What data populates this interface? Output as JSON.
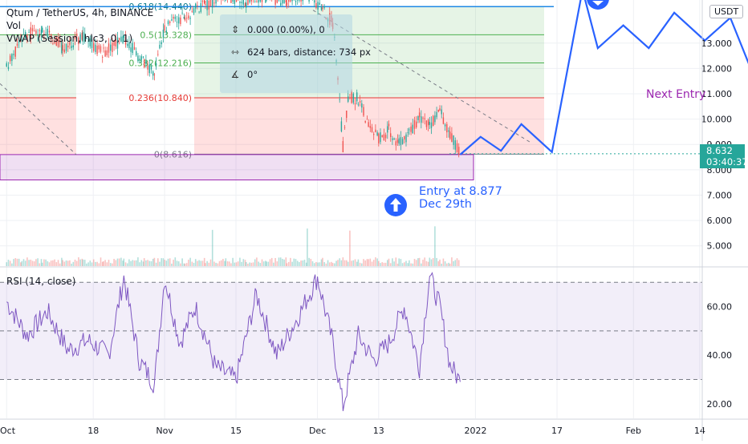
{
  "legend": {
    "symbol": "Qtum / TetherUS, 4h, BINANCE",
    "volume": "Vol",
    "vwap": "VWAP (Session, hlc3, 0, 1)",
    "rsi": "RSI (14, close)"
  },
  "currency_button": "USDT",
  "measure_box": {
    "change": "0.000 (0.00%), 0",
    "bars": "624 bars, distance: 734 px",
    "angle": "0°"
  },
  "last_price": {
    "price": "8.632",
    "countdown": "03:40:37"
  },
  "annotations": {
    "entry": "Entry at 8.877\nDec 29th",
    "next_entry": "Next Entry"
  },
  "fib_labels": [
    "0.618(14.440)",
    "0.5(13.328)",
    "0.382(12.216)",
    "0.236(10.840)",
    "0(8.616)"
  ],
  "colors": {
    "bullish": "#26a69a",
    "bearish": "#ef5350",
    "projection": "#2962ff",
    "rsi_line": "#7e57c2",
    "zone": "#9c27b0"
  },
  "chart_data": [
    {
      "type": "line",
      "panel": "price",
      "title": "Qtum / TetherUS, 4h, BINANCE",
      "ylim": [
        4.2,
        14.7
      ],
      "y_ticks": [
        5,
        6,
        7,
        8,
        9,
        10,
        11,
        12,
        13
      ],
      "y_tick_labels": [
        "5.000",
        "6.000",
        "7.000",
        "8.000",
        "9.000",
        "10.000",
        "11.000",
        "12.000",
        "13.000"
      ],
      "x_tick_labels": [
        "Oct",
        "18",
        "Nov",
        "15",
        "Dec",
        "13",
        "2022",
        "17",
        "Feb",
        "14"
      ],
      "fib_levels": [
        {
          "ratio": 0.618,
          "price": 14.44
        },
        {
          "ratio": 0.5,
          "price": 13.328
        },
        {
          "ratio": 0.382,
          "price": 12.216
        },
        {
          "ratio": 0.236,
          "price": 10.84
        },
        {
          "ratio": 0,
          "price": 8.616
        }
      ],
      "series": [
        {
          "kind": "price_path",
          "x": [
            "Oct 01",
            "Oct 04",
            "Oct 08",
            "Oct 12",
            "Oct 16",
            "Oct 20",
            "Oct 24",
            "Oct 28",
            "Oct 30",
            "Nov 01",
            "Nov 05",
            "Nov 09",
            "Nov 13",
            "Nov 17",
            "Nov 21",
            "Nov 25",
            "Nov 29",
            "Dec 02",
            "Dec 04",
            "Dec 05",
            "Dec 06",
            "Dec 07",
            "Dec 09",
            "Dec 11",
            "Dec 13",
            "Dec 15",
            "Dec 17",
            "Dec 19",
            "Dec 21",
            "Dec 23",
            "Dec 25",
            "Dec 27",
            "Dec 29"
          ],
          "values": [
            12.0,
            13.2,
            13.6,
            12.8,
            13.3,
            12.6,
            13.2,
            12.2,
            11.8,
            13.6,
            14.1,
            14.5,
            14.9,
            14.6,
            14.8,
            14.7,
            14.9,
            14.3,
            13.8,
            11.5,
            8.9,
            10.9,
            10.8,
            9.8,
            9.2,
            9.6,
            9.0,
            9.4,
            10.1,
            9.8,
            10.3,
            9.4,
            8.65
          ]
        },
        {
          "name": "",
          "kind": "projection",
          "x": [
            "Dec 29",
            "Jan 02",
            "Jan 06",
            "Jan 10",
            "Jan 16",
            "Jan 22",
            "Jan 25",
            "Jan 30",
            "Feb 04",
            "Feb 09",
            "Feb 15",
            "Feb 20",
            "Feb 24",
            "Feb 28",
            "Mar 02"
          ],
          "values": [
            8.6,
            9.3,
            8.75,
            9.8,
            8.7,
            15.1,
            12.8,
            13.7,
            12.8,
            14.2,
            13.1,
            14.0,
            12.0,
            14.9,
            13.5
          ]
        }
      ],
      "last_price": 8.632,
      "entry_price": 8.877,
      "zone": [
        7.6,
        8.6
      ]
    },
    {
      "type": "line",
      "panel": "rsi",
      "title": "RSI (14, close)",
      "ylim": [
        14,
        76
      ],
      "bands": [
        30,
        50,
        70
      ],
      "y_ticks": [
        20,
        40,
        60
      ],
      "y_tick_labels": [
        "20.00",
        "40.00",
        "60.00"
      ],
      "series": [
        {
          "name": "",
          "x": [
            "Oct 01",
            "Oct 05",
            "Oct 09",
            "Oct 13",
            "Oct 17",
            "Oct 21",
            "Oct 24",
            "Oct 27",
            "Oct 30",
            "Nov 01",
            "Nov 04",
            "Nov 07",
            "Nov 11",
            "Nov 15",
            "Nov 19",
            "Nov 23",
            "Nov 27",
            "Dec 01",
            "Dec 04",
            "Dec 06",
            "Dec 09",
            "Dec 12",
            "Dec 15",
            "Dec 18",
            "Dec 21",
            "Dec 23",
            "Dec 25",
            "Dec 27",
            "Dec 29"
          ],
          "values": [
            62,
            48,
            58,
            42,
            46,
            40,
            72,
            38,
            28,
            72,
            45,
            60,
            35,
            30,
            65,
            40,
            55,
            72,
            45,
            19,
            48,
            38,
            45,
            60,
            35,
            73,
            60,
            36,
            29
          ]
        }
      ]
    }
  ]
}
